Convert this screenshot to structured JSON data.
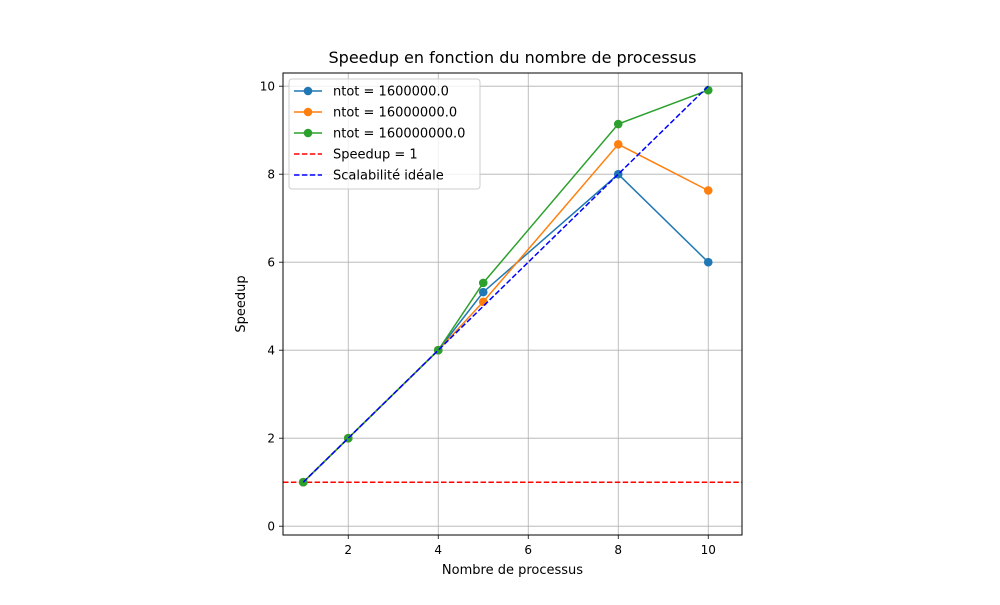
{
  "chart_data": {
    "type": "line",
    "title": "Speedup en fonction du nombre de processus",
    "xlabel": "Nombre de processus",
    "ylabel": "Speedup",
    "xlim": [
      0.55,
      10.75
    ],
    "ylim": [
      -0.2,
      10.3
    ],
    "xticks": [
      2,
      4,
      6,
      8,
      10
    ],
    "yticks": [
      0,
      2,
      4,
      6,
      8,
      10
    ],
    "grid": true,
    "legend_position": "top-left",
    "x": [
      1,
      2,
      4,
      5,
      8,
      10
    ],
    "series": [
      {
        "name": "ntot = 1600000.0",
        "color": "#1f77b4",
        "style": "solid",
        "marker": "circle",
        "values": [
          1.0,
          2.0,
          4.0,
          5.32,
          8.0,
          6.0
        ]
      },
      {
        "name": "ntot = 16000000.0",
        "color": "#ff7f0e",
        "style": "solid",
        "marker": "circle",
        "values": [
          1.0,
          2.0,
          4.0,
          5.1,
          8.68,
          7.63
        ]
      },
      {
        "name": "ntot = 160000000.0",
        "color": "#2ca02c",
        "style": "solid",
        "marker": "circle",
        "values": [
          1.0,
          2.0,
          4.0,
          5.53,
          9.14,
          9.91
        ]
      }
    ],
    "reference_lines": [
      {
        "name": "Speedup = 1",
        "color": "#ff0000",
        "style": "dashed",
        "kind": "horizontal",
        "y": 1
      },
      {
        "name": "Scalabilité idéale",
        "color": "#0000ff",
        "style": "dashed",
        "kind": "ideal",
        "x": [
          1,
          2,
          4,
          5,
          8,
          10
        ],
        "values": [
          1,
          2,
          4,
          5,
          8,
          10
        ]
      }
    ]
  }
}
